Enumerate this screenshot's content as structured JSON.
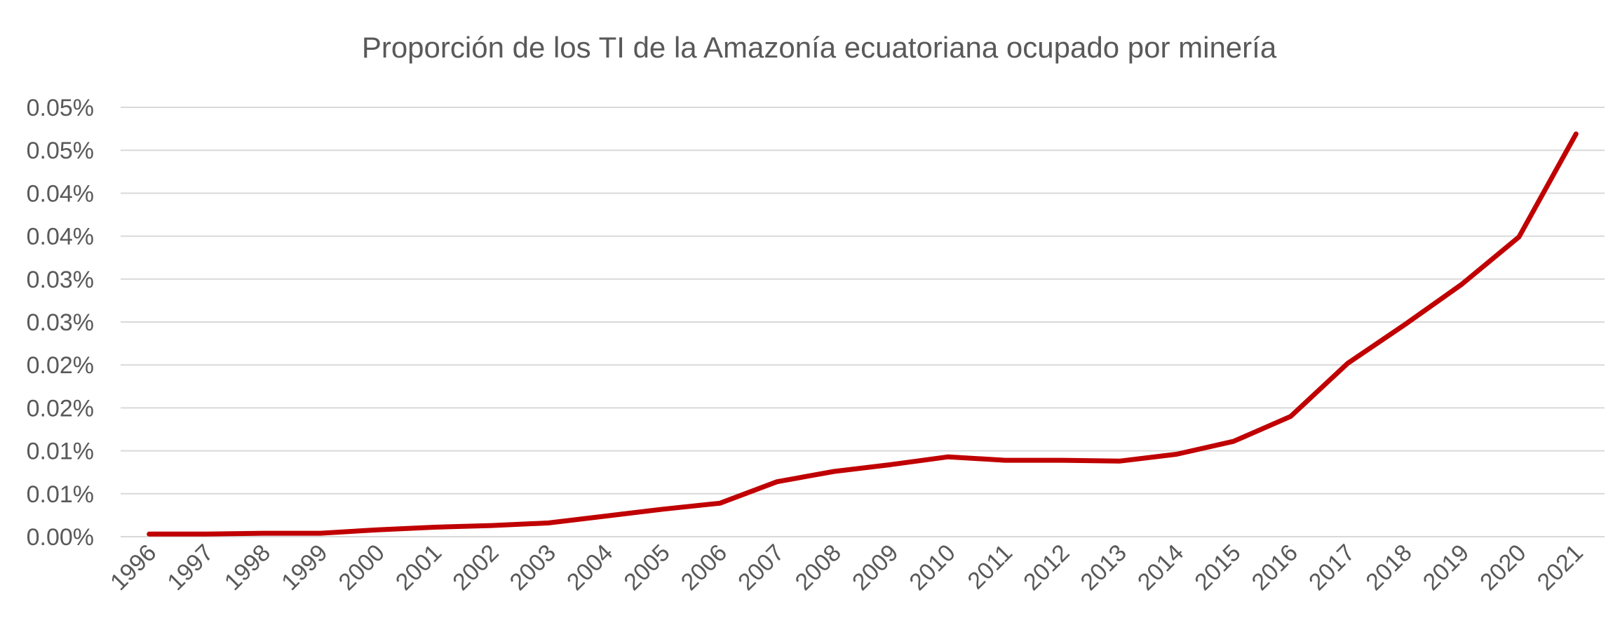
{
  "chart_data": {
    "type": "line",
    "title": "Proporción de los TI de la Amazonía ecuatoriana ocupado por minería",
    "xlabel": "",
    "ylabel": "",
    "categories": [
      "1996",
      "1997",
      "1998",
      "1999",
      "2000",
      "2001",
      "2002",
      "2003",
      "2004",
      "2005",
      "2006",
      "2007",
      "2008",
      "2009",
      "2010",
      "2011",
      "2012",
      "2013",
      "2014",
      "2015",
      "2016",
      "2017",
      "2018",
      "2019",
      "2020",
      "2021"
    ],
    "series": [
      {
        "color": "#c00000",
        "values": [
          0.0003,
          0.0003,
          0.0004,
          0.0004,
          0.0008,
          0.0011,
          0.0013,
          0.0016,
          0.0024,
          0.0032,
          0.0039,
          0.0064,
          0.0076,
          0.0084,
          0.0093,
          0.0089,
          0.0089,
          0.0088,
          0.0096,
          0.0111,
          0.014,
          0.0202,
          0.0247,
          0.0294,
          0.0349,
          0.0469
        ]
      }
    ],
    "ylim": [
      0,
      0.05
    ],
    "yticks": [
      0,
      0.005,
      0.01,
      0.015,
      0.02,
      0.025,
      0.03,
      0.035,
      0.04,
      0.045,
      0.05
    ],
    "ytick_labels": [
      "0.00%",
      "0.01%",
      "0.01%",
      "0.02%",
      "0.02%",
      "0.03%",
      "0.03%",
      "0.04%",
      "0.04%",
      "0.05%",
      "0.05%"
    ],
    "grid": true,
    "legend": "none"
  }
}
